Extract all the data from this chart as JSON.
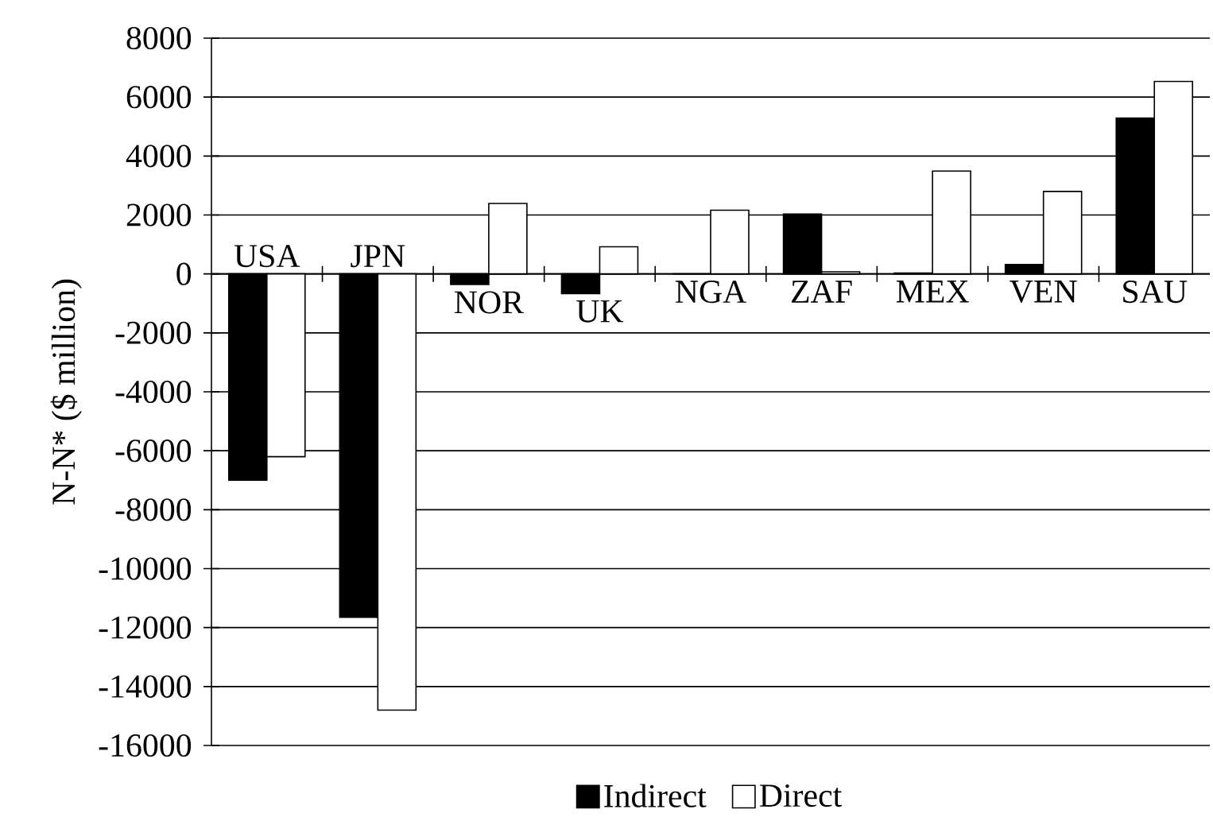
{
  "chart_data": {
    "type": "bar",
    "ylabel": "N-N* ($ million)",
    "categories": [
      "USA",
      "JPN",
      "NOR",
      "UK",
      "NGA",
      "ZAF",
      "MEX",
      "VEN",
      "SAU"
    ],
    "series": [
      {
        "name": "Indirect",
        "color": "#000000",
        "values": [
          -7000,
          -11650,
          -360,
          -670,
          0,
          2030,
          30,
          320,
          5290
        ]
      },
      {
        "name": "Direct",
        "color": "#ffffff",
        "values": [
          -6200,
          -14800,
          2390,
          920,
          2160,
          70,
          3490,
          2800,
          6530
        ]
      }
    ],
    "ylim": [
      -16000,
      8000
    ],
    "yticks": [
      -16000,
      -14000,
      -12000,
      -10000,
      -8000,
      -6000,
      -4000,
      -2000,
      0,
      2000,
      4000,
      6000,
      8000
    ],
    "grid": "y",
    "legend": "bottom"
  }
}
